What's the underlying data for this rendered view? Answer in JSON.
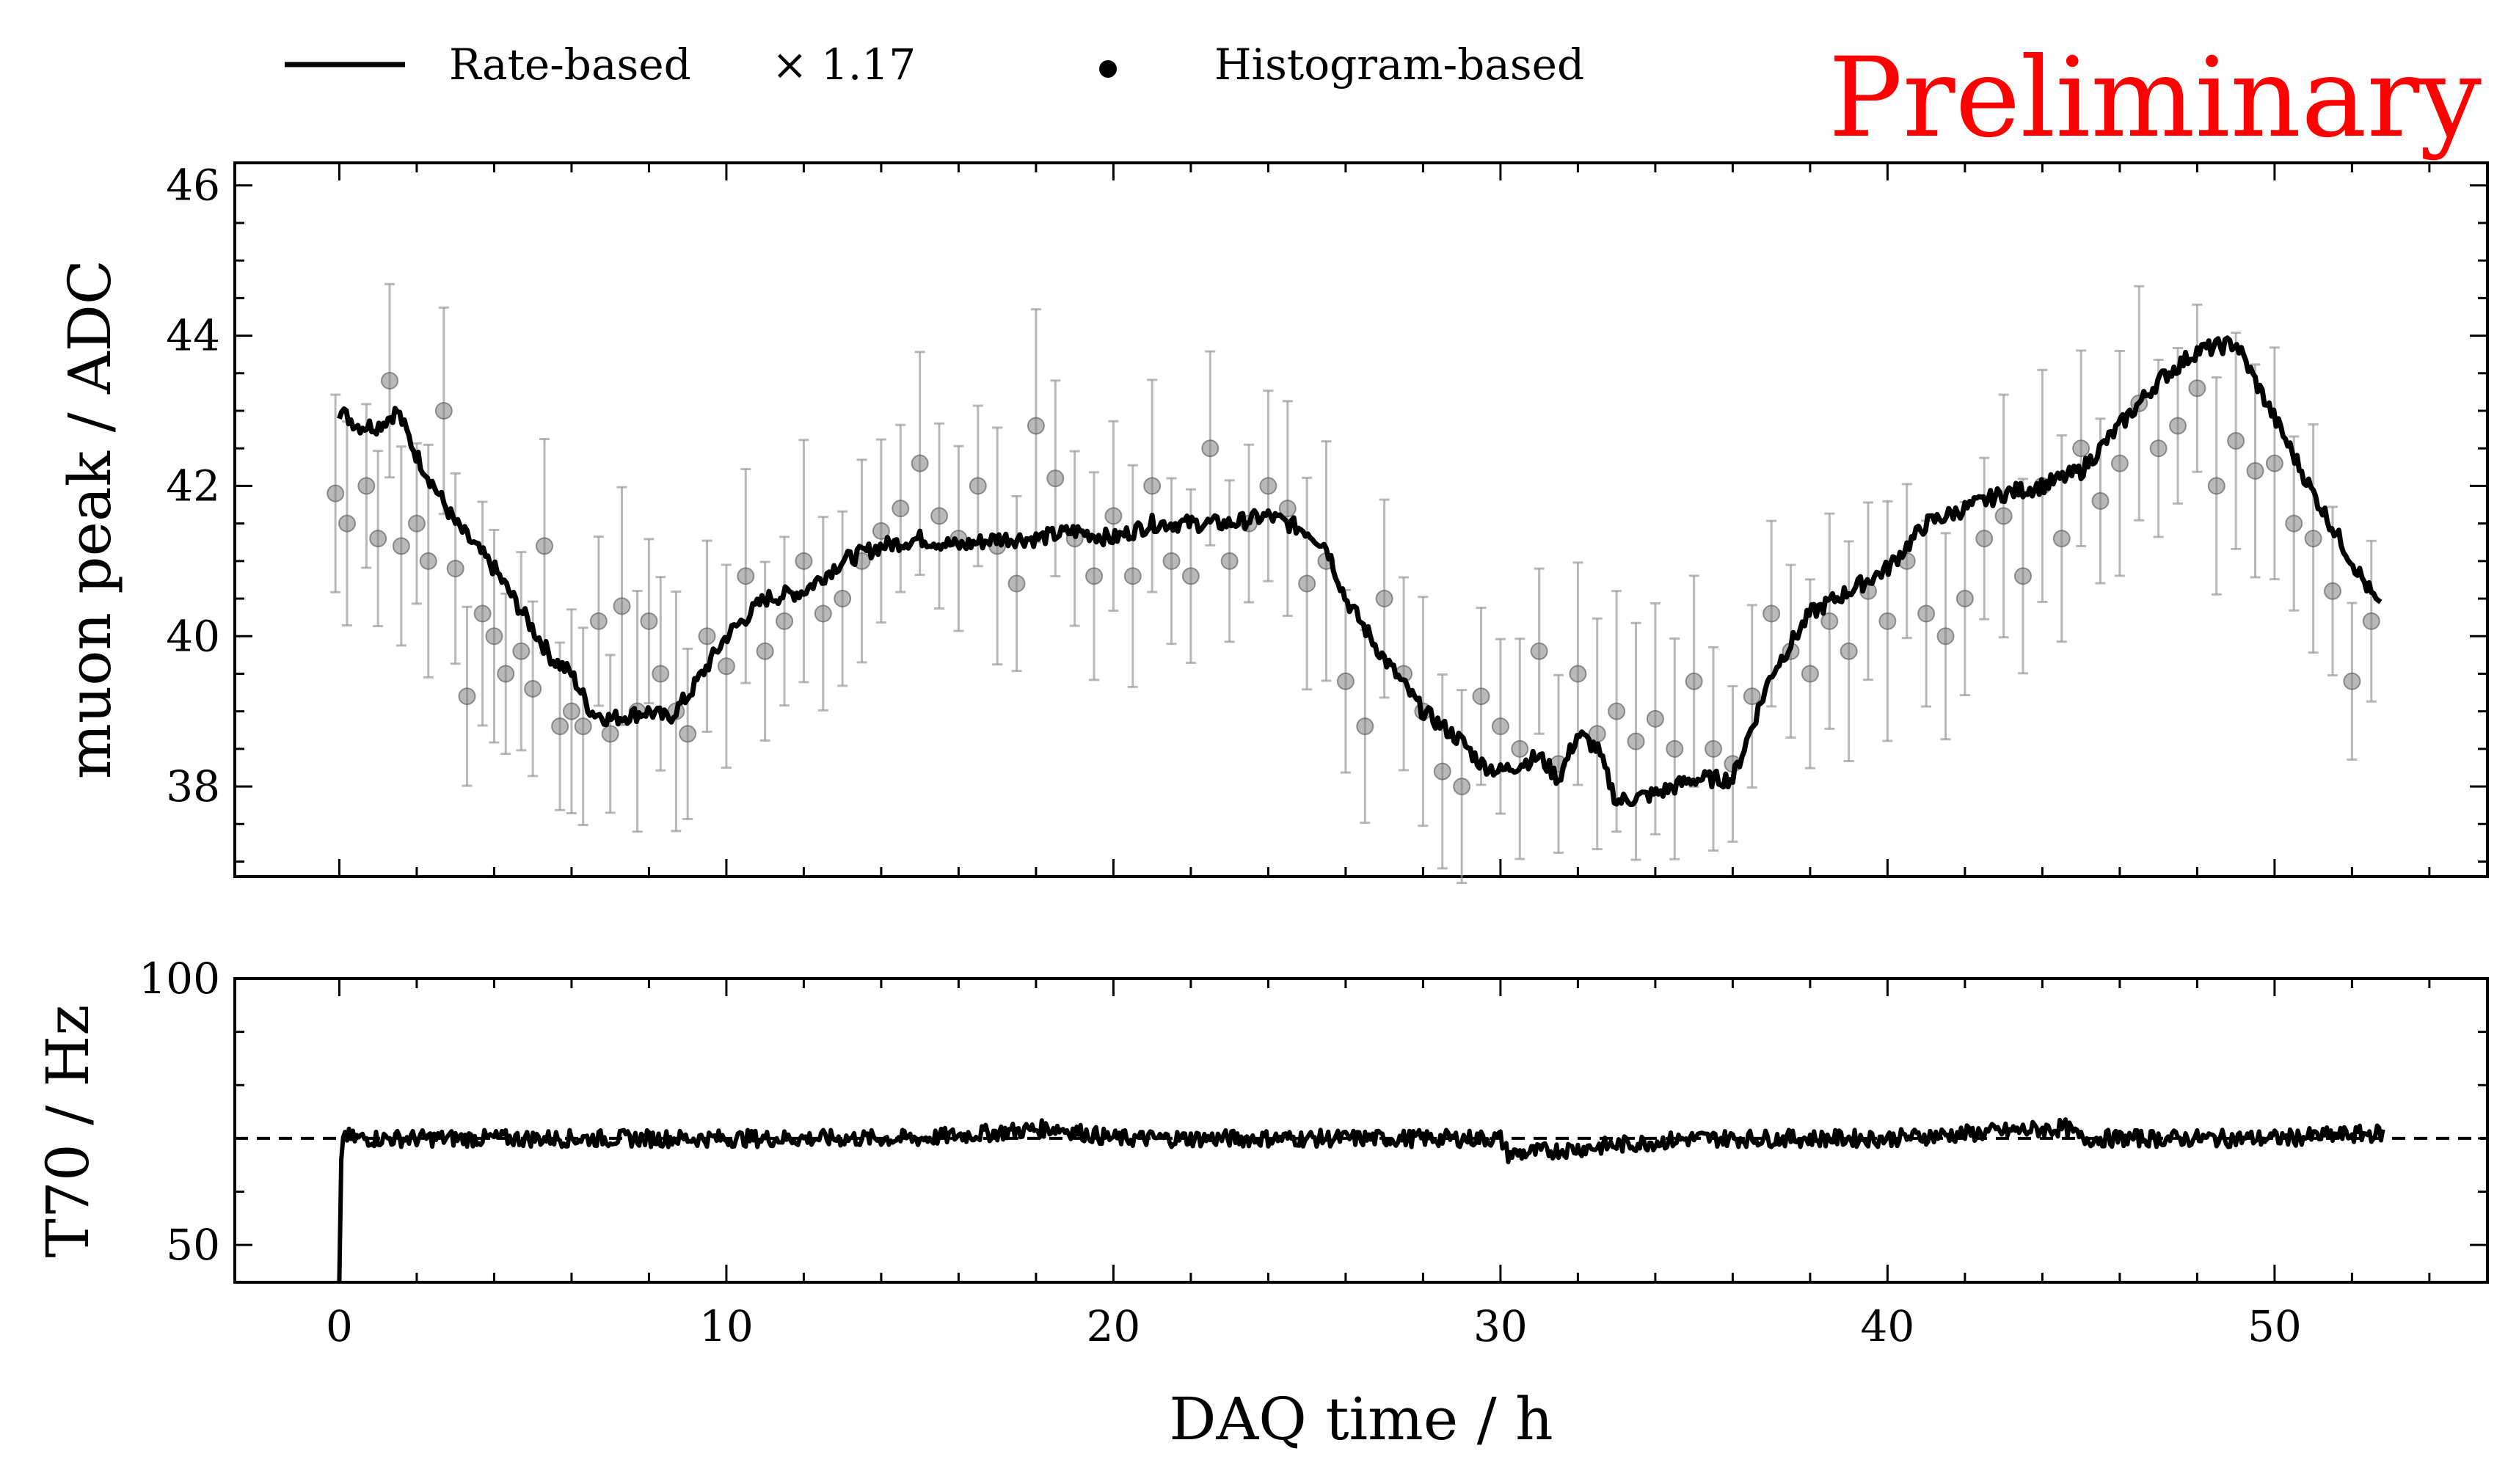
{
  "figure": {
    "watermark": "Preliminary",
    "watermark_color": "#ff0000"
  },
  "legend": {
    "placement": "top, above plot",
    "entries": [
      {
        "marker": "line",
        "label": "Rate-based",
        "suffix": "× 1.17"
      },
      {
        "marker": "dot",
        "label": "Histogram-based"
      }
    ]
  },
  "chart_data": [
    {
      "type": "line",
      "ylabel": "muon peak / ADC",
      "xlabel": "",
      "xlim": [
        -2.7,
        55.5
      ],
      "ylim": [
        36.8,
        46.3
      ],
      "yticks": [
        38,
        40,
        42,
        44,
        46
      ],
      "xticks": [
        0,
        10,
        20,
        30,
        40,
        50
      ],
      "series": [
        {
          "name": "Rate-based",
          "scale_factor": 1.17,
          "style": "line",
          "color": "#000000",
          "x": [
            0,
            0.5,
            1,
            1.5,
            2,
            3,
            4,
            5,
            5.5,
            6,
            6.5,
            7,
            8,
            8.5,
            9,
            10,
            11,
            12,
            13,
            14,
            15,
            16,
            17,
            18,
            19,
            20,
            21,
            22,
            23,
            24,
            25,
            25.5,
            26,
            27,
            28,
            29,
            29.5,
            30,
            31,
            31.5,
            32,
            32.5,
            33,
            34,
            35,
            36,
            37,
            38,
            39,
            40,
            41,
            42,
            43,
            44,
            45,
            46,
            47,
            48,
            49,
            50,
            51,
            52,
            52.8
          ],
          "y": [
            43.0,
            42.8,
            42.8,
            43.0,
            42.4,
            41.5,
            40.9,
            40.1,
            39.7,
            39.5,
            39.0,
            38.9,
            39.0,
            38.9,
            39.2,
            40.0,
            40.5,
            40.6,
            41.0,
            41.2,
            41.3,
            41.2,
            41.3,
            41.3,
            41.4,
            41.3,
            41.5,
            41.5,
            41.5,
            41.6,
            41.4,
            41.2,
            40.5,
            39.7,
            39.0,
            38.6,
            38.3,
            38.2,
            38.4,
            38.1,
            38.7,
            38.5,
            37.8,
            37.9,
            38.1,
            38.1,
            39.5,
            40.3,
            40.6,
            40.9,
            41.5,
            41.7,
            41.9,
            42.0,
            42.2,
            42.8,
            43.4,
            43.8,
            43.9,
            42.9,
            41.9,
            41.0,
            40.3
          ]
        },
        {
          "name": "Histogram-based",
          "style": "points with error bars",
          "color": "#808080",
          "x": [
            -0.1,
            0.2,
            0.7,
            1.0,
            1.3,
            1.6,
            2.0,
            2.3,
            2.7,
            3.0,
            3.3,
            3.7,
            4.0,
            4.3,
            4.7,
            5.0,
            5.3,
            5.7,
            6.0,
            6.3,
            6.7,
            7.0,
            7.3,
            7.7,
            8.0,
            8.3,
            8.7,
            9.0,
            9.5,
            10.0,
            10.5,
            11.0,
            11.5,
            12.0,
            12.5,
            13.0,
            13.5,
            14.0,
            14.5,
            15.0,
            15.5,
            16.0,
            16.5,
            17.0,
            17.5,
            18.0,
            18.5,
            19.0,
            19.5,
            20.0,
            20.5,
            21.0,
            21.5,
            22.0,
            22.5,
            23.0,
            23.5,
            24.0,
            24.5,
            25.0,
            25.5,
            26.0,
            26.5,
            27.0,
            27.5,
            28.0,
            28.5,
            29.0,
            29.5,
            30.0,
            30.5,
            31.0,
            31.5,
            32.0,
            32.5,
            33.0,
            33.5,
            34.0,
            34.5,
            35.0,
            35.5,
            36.0,
            36.5,
            37.0,
            37.5,
            38.0,
            38.5,
            39.0,
            39.5,
            40.0,
            40.5,
            41.0,
            41.5,
            42.0,
            42.5,
            43.0,
            43.5,
            44.0,
            44.5,
            45.0,
            45.5,
            46.0,
            46.5,
            47.0,
            47.5,
            48.0,
            48.5,
            49.0,
            49.5,
            50.0,
            50.5,
            51.0,
            51.5,
            52.0,
            52.5
          ],
          "y": [
            41.9,
            41.5,
            42.0,
            41.3,
            43.4,
            41.2,
            41.5,
            41.0,
            43.0,
            40.9,
            39.2,
            40.3,
            40.0,
            39.5,
            39.8,
            39.3,
            41.2,
            38.8,
            39.0,
            38.8,
            40.2,
            38.7,
            40.4,
            39.0,
            40.2,
            39.5,
            39.0,
            38.7,
            40.0,
            39.6,
            40.8,
            39.8,
            40.2,
            41.0,
            40.3,
            40.5,
            41.0,
            41.4,
            41.7,
            42.3,
            41.6,
            41.3,
            42.0,
            41.2,
            40.7,
            42.8,
            42.1,
            41.3,
            40.8,
            41.6,
            40.8,
            42.0,
            41.0,
            40.8,
            42.5,
            41.0,
            41.5,
            42.0,
            41.7,
            40.7,
            41.0,
            39.4,
            38.8,
            40.5,
            39.5,
            39.0,
            38.2,
            38.0,
            39.2,
            38.8,
            38.5,
            39.8,
            38.3,
            39.5,
            38.7,
            39.0,
            38.6,
            38.9,
            38.5,
            39.4,
            38.5,
            38.3,
            39.2,
            40.3,
            39.8,
            39.5,
            40.2,
            39.8,
            40.6,
            40.2,
            41.0,
            40.3,
            40.0,
            40.5,
            41.3,
            41.6,
            40.8,
            42.0,
            41.3,
            42.5,
            41.8,
            42.3,
            43.1,
            42.5,
            42.8,
            43.3,
            42.0,
            42.6,
            42.2,
            42.3,
            41.5,
            41.3,
            40.6,
            39.4,
            40.2
          ],
          "yerr": 1.2
        }
      ]
    },
    {
      "type": "line",
      "ylabel": "T70 / Hz",
      "xlabel": "DAQ time / h",
      "xlim": [
        -2.7,
        55.5
      ],
      "ylim": [
        43,
        100
      ],
      "yticks": [
        50,
        100
      ],
      "xticks": [
        0,
        10,
        20,
        30,
        40,
        50
      ],
      "reference_line": {
        "y": 70,
        "style": "dashed"
      },
      "series": [
        {
          "style": "line",
          "color": "#000000",
          "x": [
            0,
            0.05,
            0.1,
            0.3,
            1,
            5,
            10,
            15,
            18.5,
            20,
            25,
            30,
            30.2,
            35,
            40,
            44.6,
            45,
            50,
            52.8
          ],
          "y": [
            43,
            60,
            71,
            70,
            70,
            70,
            70,
            70,
            72,
            70,
            70,
            70,
            67,
            70,
            70,
            72,
            70,
            70,
            71
          ]
        }
      ]
    }
  ],
  "text": {
    "top_ylabel": "muon peak / ADC",
    "bottom_ylabel": "T70 / Hz",
    "xlabel": "DAQ time / h",
    "legend_line_label": "Rate-based",
    "legend_line_suffix": "× 1.17",
    "legend_dot_label": "Histogram-based",
    "watermark": "Preliminary"
  }
}
